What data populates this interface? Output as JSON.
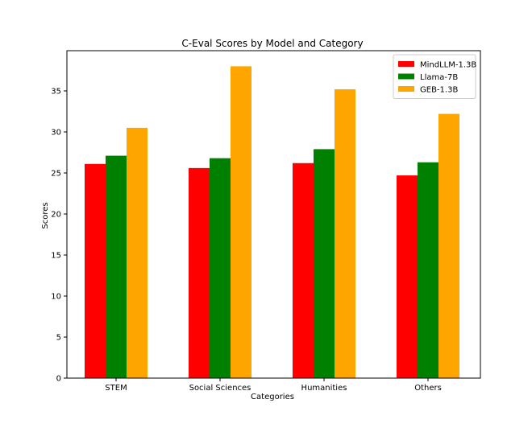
{
  "chart_data": {
    "type": "bar",
    "title": "C-Eval Scores by Model and Category",
    "xlabel": "Categories",
    "ylabel": "Scores",
    "categories": [
      "STEM",
      "Social Sciences",
      "Humanities",
      "Others"
    ],
    "ylim": [
      0,
      39.9
    ],
    "yticks": [
      0,
      5,
      10,
      15,
      20,
      25,
      30,
      35
    ],
    "grid": false,
    "legend_position": "top-right",
    "series": [
      {
        "name": "MindLLM-1.3B",
        "color": "#ff0000",
        "values": [
          26.1,
          25.6,
          26.2,
          24.7
        ]
      },
      {
        "name": "Llama-7B",
        "color": "#008000",
        "values": [
          27.1,
          26.8,
          27.9,
          26.3
        ]
      },
      {
        "name": "GEB-1.3B",
        "color": "#ffa500",
        "values": [
          30.5,
          38.0,
          35.2,
          32.2
        ]
      }
    ]
  }
}
